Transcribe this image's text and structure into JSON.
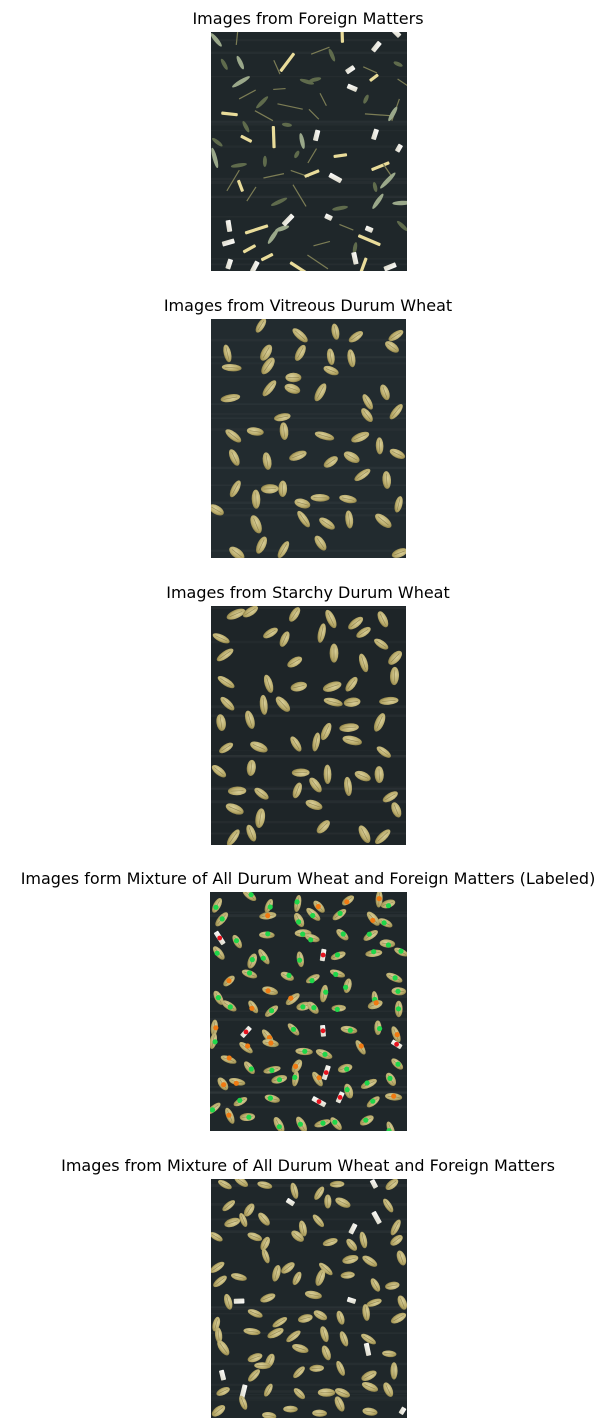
{
  "panels": [
    {
      "title": "Images from Foreign Matters",
      "kind": "foreign-matters",
      "background_color": "#1f272a"
    },
    {
      "title": "Images from Vitreous Durum Wheat",
      "kind": "vitreous-wheat",
      "background_color": "#222b2f"
    },
    {
      "title": "Images from Starchy Durum Wheat",
      "kind": "starchy-wheat",
      "background_color": "#1e2528"
    },
    {
      "title": "Images form Mixture of All Durum Wheat and Foreign Matters (Labeled)",
      "kind": "mixture-labeled",
      "background_color": "#1f272a"
    },
    {
      "title": "Images from Mixture of All Durum Wheat and Foreign Matters",
      "kind": "mixture",
      "background_color": "#1f272a"
    }
  ],
  "colors": {
    "grain_light": "#d9cf9a",
    "grain_dark": "#8c7f45",
    "label_green": "#1fd64a",
    "label_orange": "#f07a12",
    "label_red": "#e8131f",
    "foreign_white": "#f3f1e6"
  }
}
